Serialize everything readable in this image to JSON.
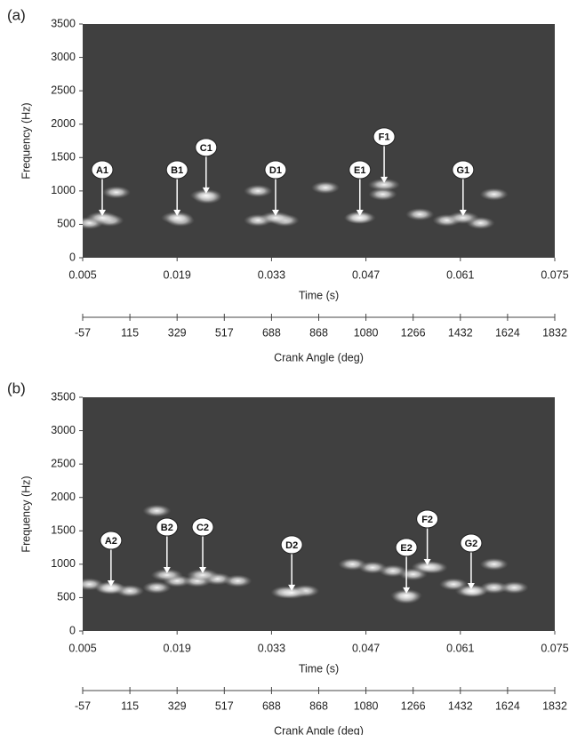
{
  "chart_data": [
    {
      "type": "spectrogram",
      "panel_label": "(a)",
      "xlabel": "Time (s)",
      "ylabel": "Frequency (Hz)",
      "xlim": [
        0.005,
        0.075
      ],
      "xticks": [
        0.005,
        0.019,
        0.033,
        0.047,
        0.061,
        0.075
      ],
      "ylim": [
        0,
        3500
      ],
      "yticks": [
        0,
        500,
        1000,
        1500,
        2000,
        2500,
        3000,
        3500
      ],
      "background": "#404040",
      "secondary_axis": {
        "label": "Crank Angle (deg)",
        "ticks": [
          -57,
          115,
          329,
          517,
          688,
          868,
          1080,
          1266,
          1432,
          1624,
          1832
        ]
      },
      "annotations": {
        "labels": [
          "A1",
          "B1",
          "C1",
          "D1",
          "E1",
          "F1",
          "G1"
        ],
        "x": [
          0.0079,
          0.019,
          0.0233,
          0.0336,
          0.0461,
          0.0497,
          0.0614
        ],
        "y": [
          625,
          625,
          960,
          625,
          625,
          1120,
          625
        ]
      },
      "spots": {
        "x": [
          0.006,
          0.009,
          0.0195,
          0.0235,
          0.031,
          0.035,
          0.046,
          0.0495,
          0.059,
          0.064,
          0.01,
          0.031,
          0.041,
          0.055,
          0.066
        ],
        "y": [
          520,
          560,
          560,
          900,
          560,
          560,
          600,
          950,
          560,
          520,
          980,
          1000,
          1050,
          650,
          950
        ]
      }
    },
    {
      "type": "spectrogram",
      "panel_label": "(b)",
      "xlabel": "Time (s)",
      "ylabel": "Frequency (Hz)",
      "xlim": [
        0.005,
        0.075
      ],
      "xticks": [
        0.005,
        0.019,
        0.033,
        0.047,
        0.061,
        0.075
      ],
      "ylim": [
        0,
        3500
      ],
      "yticks": [
        0,
        500,
        1000,
        1500,
        2000,
        2500,
        3000,
        3500
      ],
      "background": "#404040",
      "secondary_axis": {
        "label": "Crank Angle (deg)",
        "ticks": [
          -57,
          115,
          329,
          517,
          688,
          868,
          1080,
          1266,
          1432,
          1624,
          1832
        ]
      },
      "annotations": {
        "labels": [
          "A2",
          "B2",
          "C2",
          "D2",
          "E2",
          "F2",
          "G2"
        ],
        "x": [
          0.0092,
          0.0175,
          0.0228,
          0.036,
          0.053,
          0.0561,
          0.0626
        ],
        "y": [
          665,
          865,
          865,
          600,
          560,
          985,
          625
        ]
      },
      "spots": {
        "x": [
          0.006,
          0.009,
          0.012,
          0.016,
          0.019,
          0.022,
          0.025,
          0.028,
          0.035,
          0.038,
          0.045,
          0.048,
          0.051,
          0.054,
          0.057,
          0.06,
          0.063,
          0.066,
          0.069,
          0.053,
          0.016,
          0.066
        ],
        "y": [
          700,
          650,
          600,
          650,
          750,
          750,
          780,
          750,
          580,
          600,
          1000,
          950,
          900,
          850,
          950,
          700,
          600,
          650,
          650,
          500,
          1800,
          1000
        ]
      }
    }
  ]
}
